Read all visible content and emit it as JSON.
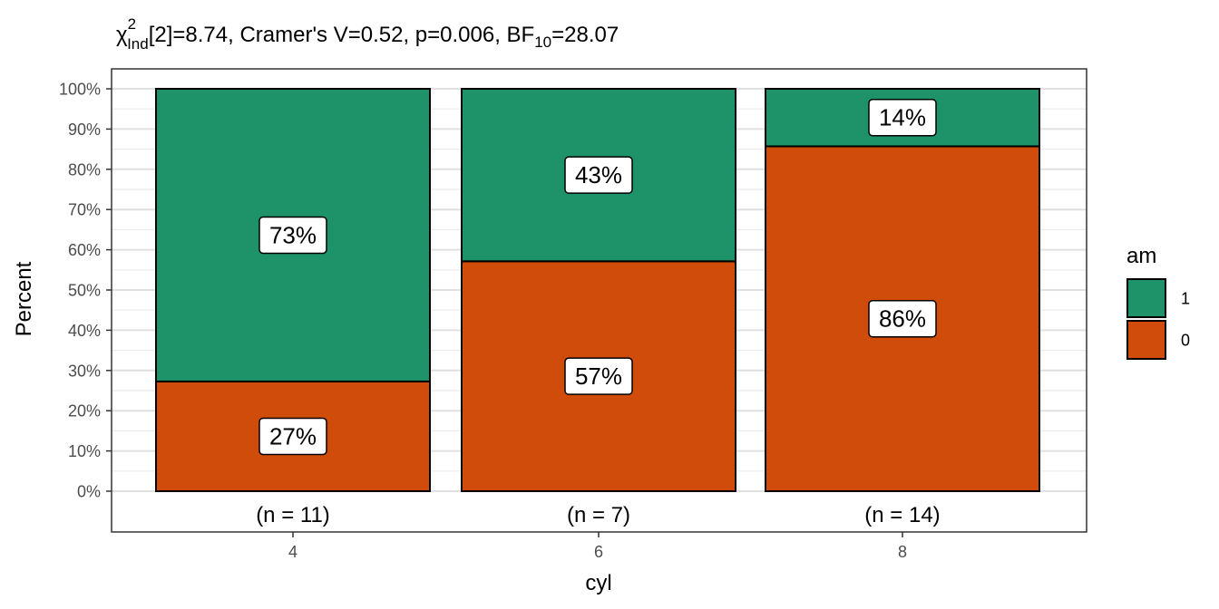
{
  "chart_data": {
    "type": "bar",
    "stacked": true,
    "title": {
      "chi": "χ",
      "sup": "2",
      "sub": "Ind",
      "main": "[2]=8.74, Cramer's V=0.52, p=0.006, BF",
      "bf_sub": "10",
      "bf_value": "=28.07"
    },
    "xlabel": "cyl",
    "ylabel": "Percent",
    "categories": [
      "4",
      "6",
      "8"
    ],
    "counts": [
      "(n = 11)",
      "(n = 7)",
      "(n = 14)"
    ],
    "ylim": [
      0,
      100
    ],
    "y_ticks": [
      0,
      10,
      20,
      30,
      40,
      50,
      60,
      70,
      80,
      90,
      100
    ],
    "y_tick_labels": [
      "0%",
      "10%",
      "20%",
      "30%",
      "40%",
      "50%",
      "60%",
      "70%",
      "80%",
      "90%",
      "100%"
    ],
    "series": [
      {
        "name": "0",
        "color": "#D04C0A",
        "values": [
          27.27,
          57.14,
          85.71
        ],
        "labels": [
          "27%",
          "57%",
          "86%"
        ]
      },
      {
        "name": "1",
        "color": "#1E9369",
        "values": [
          72.73,
          42.86,
          14.29
        ],
        "labels": [
          "73%",
          "43%",
          "14%"
        ]
      }
    ],
    "legend": {
      "title": "am",
      "placement": "right",
      "order": [
        "1",
        "0"
      ]
    },
    "grid": true
  }
}
